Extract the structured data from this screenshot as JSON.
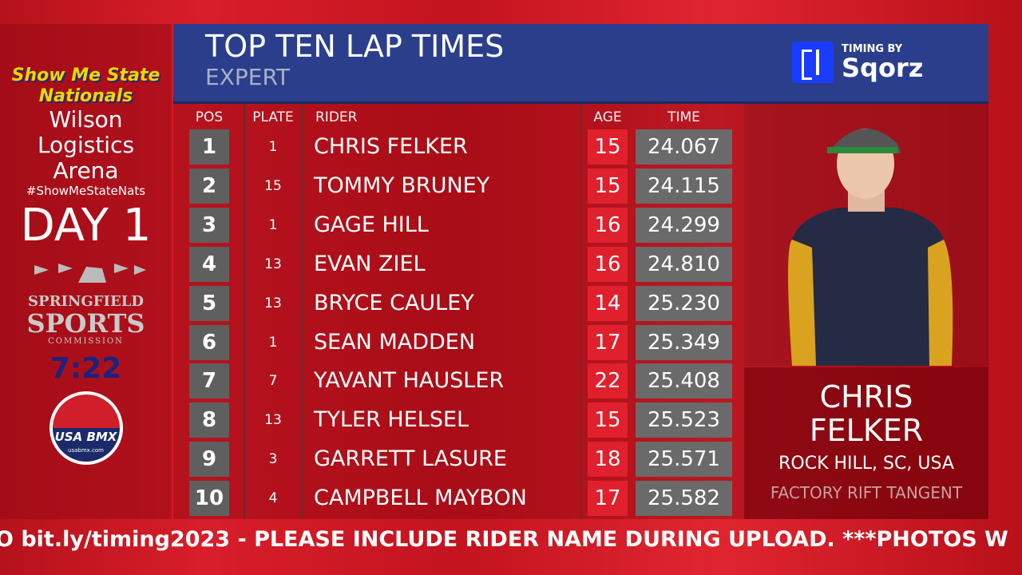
{
  "sidebar": {
    "event_title": [
      "Show Me State",
      "Nationals"
    ],
    "venue": [
      "Wilson",
      "Logistics",
      "Arena"
    ],
    "hashtag": "#ShowMeStateNats",
    "day": "DAY 1",
    "sponsor": [
      "SPRINGFIELD",
      "SPORTS",
      "COMMISSION"
    ],
    "clock": "7:22",
    "logo": "USA BMX",
    "logo_url": "usabmx.com"
  },
  "header": {
    "title": "TOP TEN LAP TIMES",
    "subtitle": "EXPERT",
    "timing_by": "TIMING BY",
    "brand": "Sqorz"
  },
  "table": {
    "columns": [
      "POS",
      "PLATE",
      "RIDER",
      "AGE",
      "TIME"
    ],
    "rows": [
      [
        "1",
        "1",
        "CHRIS FELKER",
        "15",
        "24.067"
      ],
      [
        "2",
        "15",
        "TOMMY BRUNEY",
        "15",
        "24.115"
      ],
      [
        "3",
        "1",
        "GAGE HILL",
        "16",
        "24.299"
      ],
      [
        "4",
        "13",
        "EVAN ZIEL",
        "16",
        "24.810"
      ],
      [
        "5",
        "13",
        "BRYCE CAULEY",
        "14",
        "25.230"
      ],
      [
        "6",
        "1",
        "SEAN MADDEN",
        "17",
        "25.349"
      ],
      [
        "7",
        "7",
        "YAVANT HAUSLER",
        "22",
        "25.408"
      ],
      [
        "8",
        "13",
        "TYLER HELSEL",
        "15",
        "25.523"
      ],
      [
        "9",
        "3",
        "GARRETT LASURE",
        "18",
        "25.571"
      ],
      [
        "10",
        "4",
        "CAMPBELL MAYBON",
        "17",
        "25.582"
      ]
    ]
  },
  "featured": {
    "first_name": "CHRIS",
    "last_name": "FELKER",
    "hometown": "ROCK HILL, SC, USA",
    "team": "FACTORY RIFT TANGENT"
  },
  "ticker": "O bit.ly/timing2023 - PLEASE INCLUDE RIDER NAME DURING UPLOAD. ***PHOTOS W"
}
